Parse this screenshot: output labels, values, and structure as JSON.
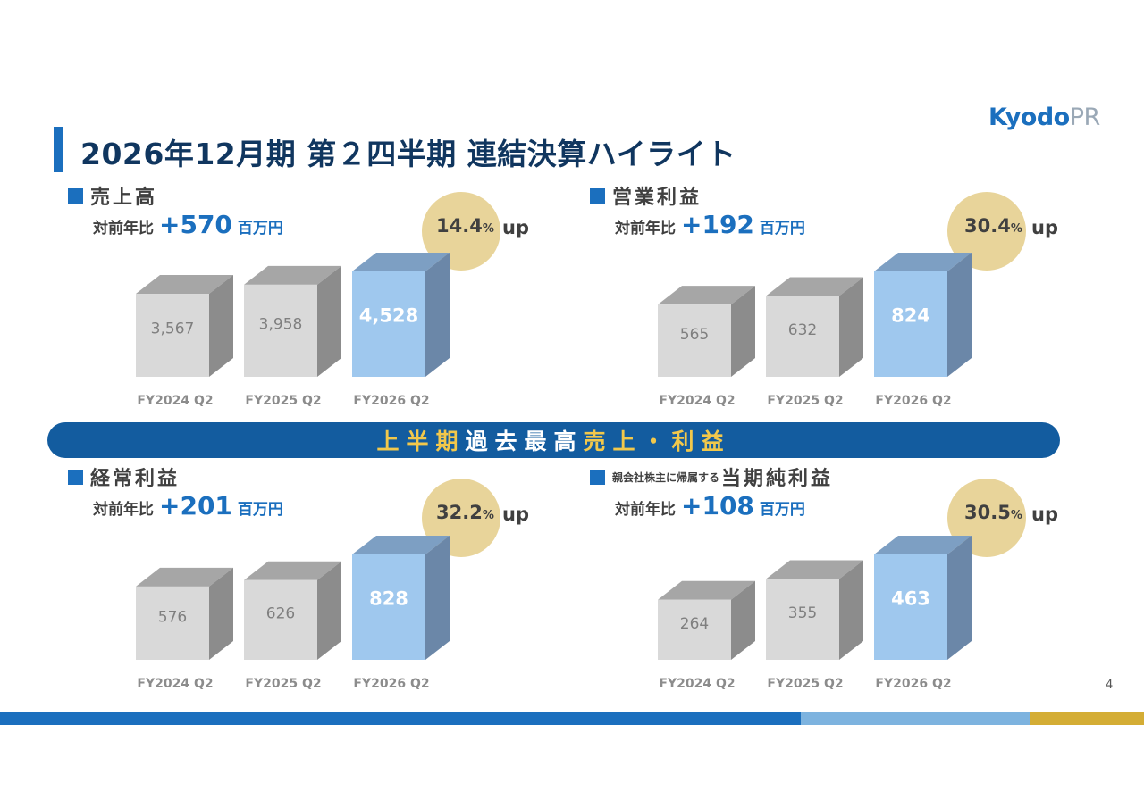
{
  "header": {
    "title": "2026年12月期 第２四半期 連結決算ハイライト",
    "logo_main": "Kyodo",
    "logo_sub": "PR"
  },
  "banner": {
    "part1": "上半期",
    "part2": "過去最高",
    "part3": "売上・利益"
  },
  "page_number": "4",
  "colors": {
    "accent_blue": "#1b6fbe",
    "title_navy": "#10365f",
    "banner_blue": "#135c9f",
    "banner_gold": "#f2c84b",
    "highlight_circle": "#e8d49a",
    "bar_gray": "#d9d9d9",
    "bar_highlight": "#9fc8ee"
  },
  "panels": [
    {
      "small_prefix": "",
      "title": "売上高",
      "yoy_label": "対前年比",
      "yoy_value": "+570",
      "yoy_unit": "百万円",
      "pct_value": "14.4",
      "pct_symbol": "%",
      "pct_suffix": "up",
      "chart_data": {
        "type": "bar",
        "categories": [
          "FY2024 Q2",
          "FY2025 Q2",
          "FY2026 Q2"
        ],
        "values": [
          3567,
          3958,
          4528
        ],
        "labels": [
          "3,567",
          "3,958",
          "4,528"
        ],
        "highlight_index": 2
      }
    },
    {
      "small_prefix": "",
      "title": "営業利益",
      "yoy_label": "対前年比",
      "yoy_value": "+192",
      "yoy_unit": "百万円",
      "pct_value": "30.4",
      "pct_symbol": "%",
      "pct_suffix": "up",
      "chart_data": {
        "type": "bar",
        "categories": [
          "FY2024 Q2",
          "FY2025 Q2",
          "FY2026 Q2"
        ],
        "values": [
          565,
          632,
          824
        ],
        "labels": [
          "565",
          "632",
          "824"
        ],
        "highlight_index": 2
      }
    },
    {
      "small_prefix": "",
      "title": "経常利益",
      "yoy_label": "対前年比",
      "yoy_value": "+201",
      "yoy_unit": "百万円",
      "pct_value": "32.2",
      "pct_symbol": "%",
      "pct_suffix": "up",
      "chart_data": {
        "type": "bar",
        "categories": [
          "FY2024 Q2",
          "FY2025 Q2",
          "FY2026 Q2"
        ],
        "values": [
          576,
          626,
          828
        ],
        "labels": [
          "576",
          "626",
          "828"
        ],
        "highlight_index": 2
      }
    },
    {
      "small_prefix": "親会社株主に帰属する",
      "title": "当期純利益",
      "yoy_label": "対前年比",
      "yoy_value": "+108",
      "yoy_unit": "百万円",
      "pct_value": "30.5",
      "pct_symbol": "%",
      "pct_suffix": "up",
      "chart_data": {
        "type": "bar",
        "categories": [
          "FY2024 Q2",
          "FY2025 Q2",
          "FY2026 Q2"
        ],
        "values": [
          264,
          355,
          463
        ],
        "labels": [
          "264",
          "355",
          "463"
        ],
        "highlight_index": 2
      }
    }
  ]
}
